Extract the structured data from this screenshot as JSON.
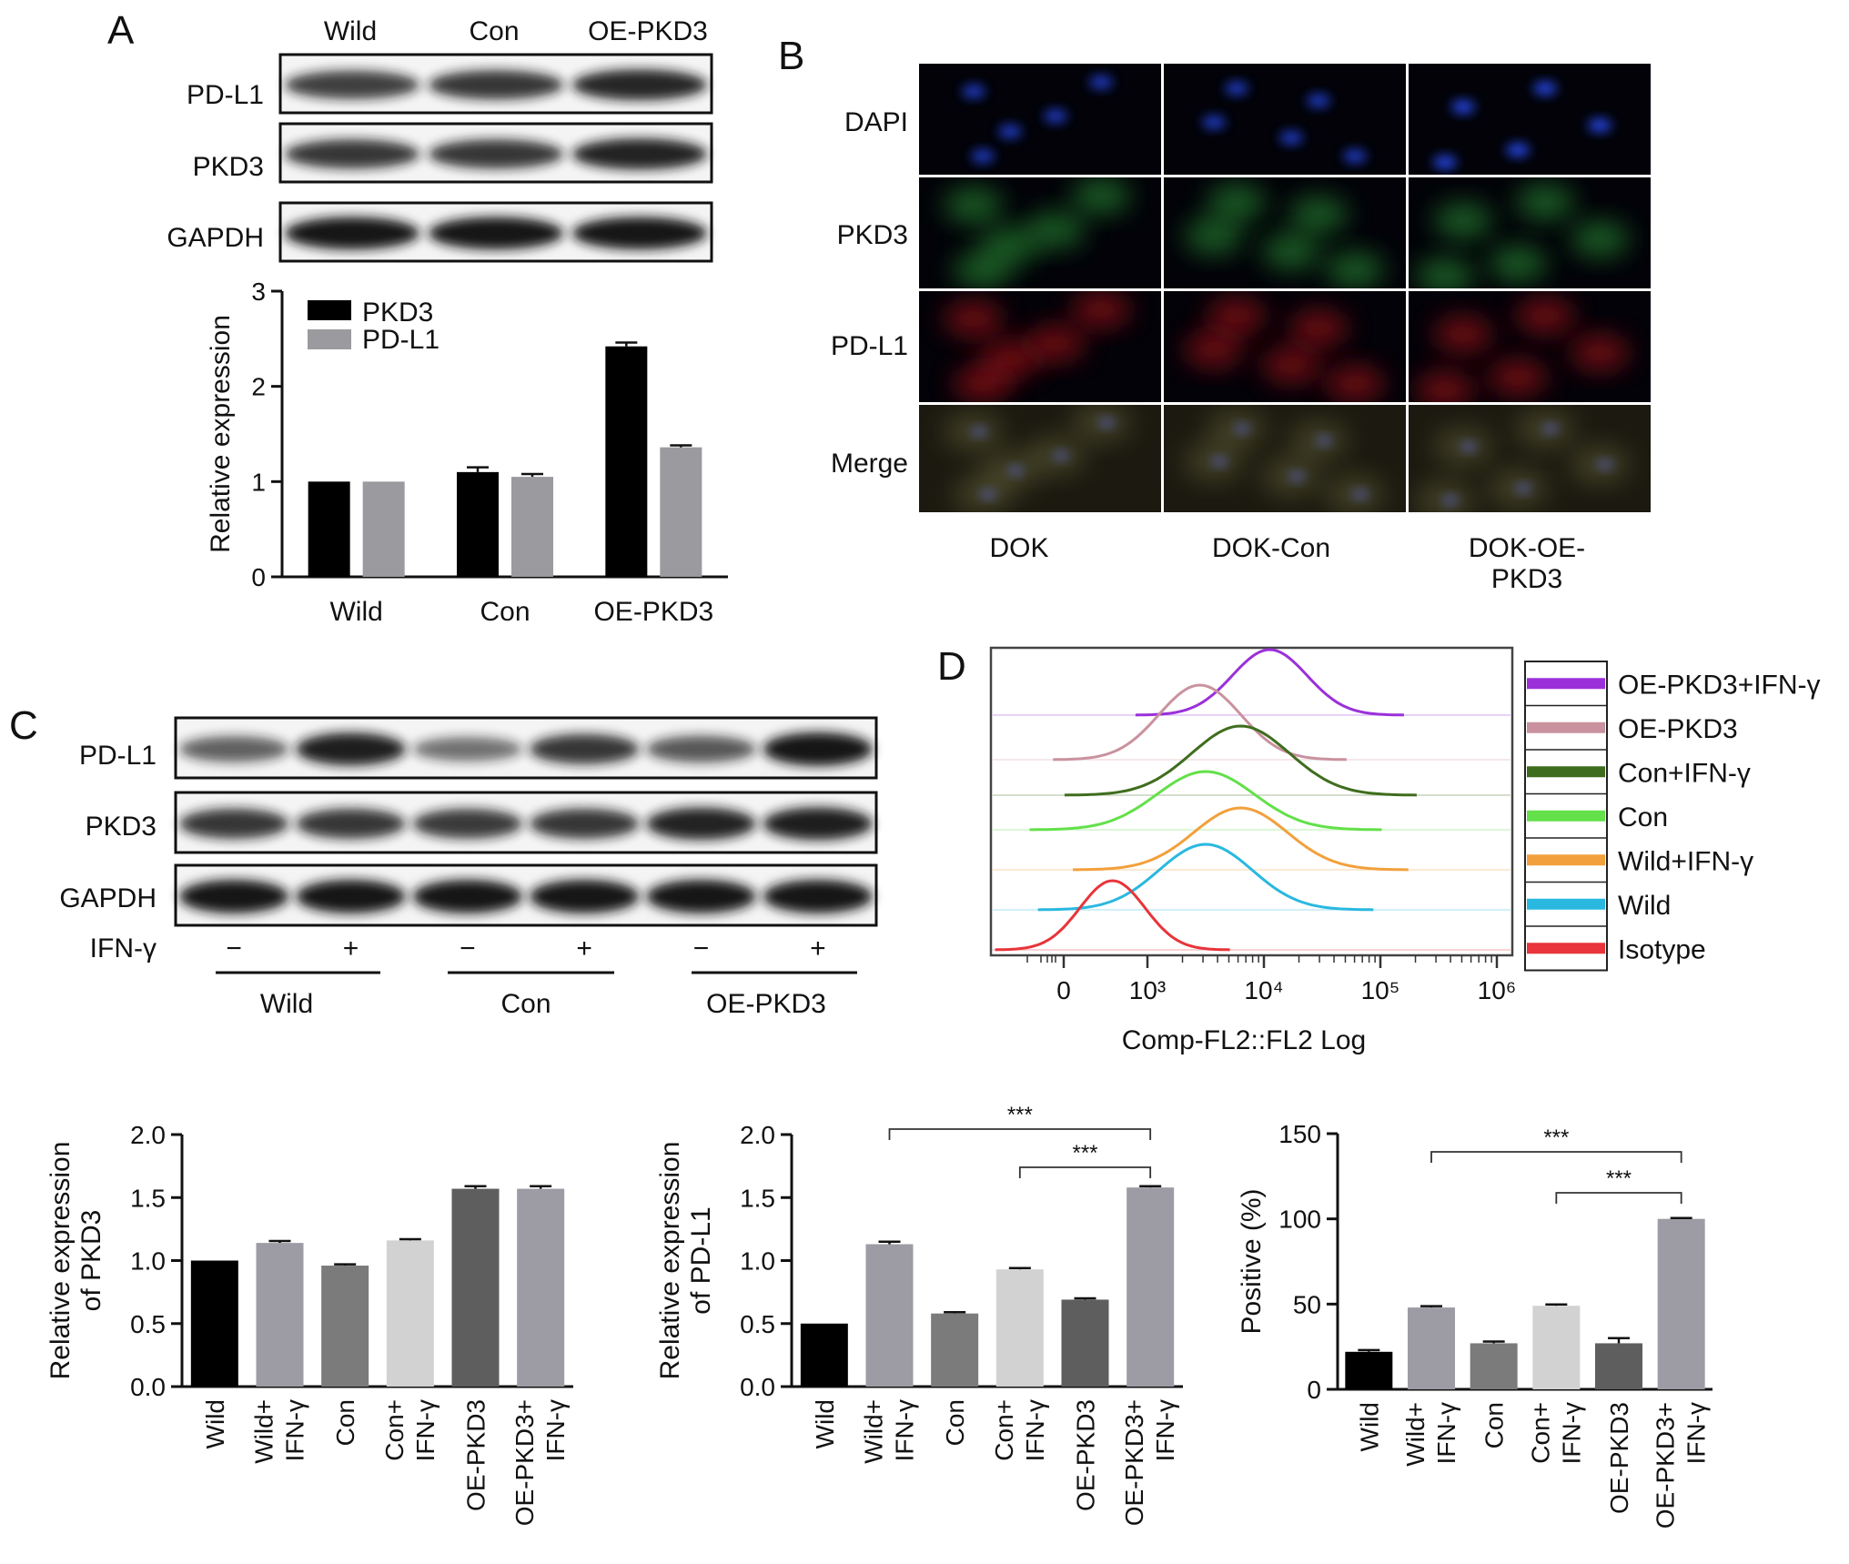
{
  "panels": {
    "A": {
      "letter": "A",
      "blot": {
        "lanes": [
          "Wild",
          "Con",
          "OE-PKD3"
        ],
        "rows": [
          "PD-L1",
          "PKD3",
          "GAPDH"
        ],
        "intensity": [
          [
            0.75,
            0.8,
            0.9
          ],
          [
            0.8,
            0.8,
            0.92
          ],
          [
            1.0,
            1.0,
            1.0
          ]
        ]
      }
    },
    "B": {
      "letter": "B",
      "rows": [
        "DAPI",
        "PKD3",
        "PD-L1",
        "Merge"
      ],
      "columns": [
        "DOK",
        "DOK-Con",
        "DOK-OE-\nPKD3"
      ],
      "row_colors": [
        "#2040d0",
        "#2fa03a",
        "#c0181e",
        "#8a8a50"
      ]
    },
    "C": {
      "letter": "C",
      "blot": {
        "rows": [
          "PD-L1",
          "PKD3",
          "GAPDH"
        ],
        "treatment_label": "IFN-γ",
        "treatment_signs": [
          "−",
          "+",
          "−",
          "+",
          "−",
          "+"
        ],
        "groups": [
          "Wild",
          "Con",
          "OE-PKD3"
        ],
        "intensity": [
          [
            0.55,
            0.95,
            0.45,
            0.8,
            0.6,
            1.0
          ],
          [
            0.8,
            0.8,
            0.78,
            0.8,
            0.92,
            0.95
          ],
          [
            1.0,
            1.0,
            1.0,
            1.0,
            1.0,
            1.0
          ]
        ]
      }
    },
    "D": {
      "letter": "D",
      "legend": [
        {
          "name": "OE-PKD3+IFN-γ",
          "color": "#9b30d9"
        },
        {
          "name": "OE-PKD3",
          "color": "#c9929e"
        },
        {
          "name": "Con+IFN-γ",
          "color": "#3f6d1e"
        },
        {
          "name": "Con",
          "color": "#63e04a"
        },
        {
          "name": "Wild+IFN-γ",
          "color": "#f2a03c"
        },
        {
          "name": "Wild",
          "color": "#2ab8e0"
        },
        {
          "name": "Isotype",
          "color": "#e8343a"
        }
      ]
    }
  },
  "chart_data": [
    {
      "type": "bar",
      "id": "A-bars",
      "categories": [
        "Wild",
        "Con",
        "OE-PKD3"
      ],
      "series": [
        {
          "name": "PKD3",
          "color": "#000000",
          "values": [
            1.0,
            1.1,
            2.42
          ],
          "errors": [
            0.0,
            0.05,
            0.04
          ]
        },
        {
          "name": "PD-L1",
          "color": "#9a9a9f",
          "values": [
            1.0,
            1.05,
            1.36
          ],
          "errors": [
            0.0,
            0.03,
            0.02
          ]
        }
      ],
      "ylabel": "Relative expression",
      "ylim": [
        0,
        3
      ],
      "yticks": [
        0,
        1,
        2,
        3
      ],
      "legend": "top-left"
    },
    {
      "type": "line",
      "id": "D-histogram",
      "xlabel": "Comp-FL2::FL2 Log",
      "xticks": [
        "0",
        "10³",
        "10⁴",
        "10⁵",
        "10⁶"
      ],
      "series": [
        {
          "name": "Isotype",
          "peak_log10": 2.7
        },
        {
          "name": "Wild",
          "peak_log10": 3.5
        },
        {
          "name": "Wild+IFN-γ",
          "peak_log10": 3.8
        },
        {
          "name": "Con",
          "peak_log10": 3.5
        },
        {
          "name": "Con+IFN-γ",
          "peak_log10": 3.8
        },
        {
          "name": "OE-PKD3",
          "peak_log10": 3.45
        },
        {
          "name": "OE-PKD3+IFN-γ",
          "peak_log10": 4.05
        }
      ]
    },
    {
      "type": "bar",
      "id": "C-PKD3",
      "categories": [
        "Wild",
        "Wild+\nIFN-γ",
        "Con",
        "Con+\nIFN-γ",
        "OE-PKD3",
        "OE-PKD3+\nIFN-γ"
      ],
      "values": [
        1.0,
        1.14,
        0.96,
        1.16,
        1.57,
        1.57
      ],
      "errors": [
        0.0,
        0.015,
        0.01,
        0.01,
        0.02,
        0.02
      ],
      "colors": [
        "#000000",
        "#9d9ca4",
        "#7b7b7b",
        "#d2d2d2",
        "#5e5e5e",
        "#9d9ca4"
      ],
      "ylabel": "Relative expression\nof PKD3",
      "ylim": [
        0,
        2
      ],
      "yticks": [
        "0.0",
        "0.5",
        "1.0",
        "1.5",
        "2.0"
      ]
    },
    {
      "type": "bar",
      "id": "C-PDL1",
      "categories": [
        "Wild",
        "Wild+\nIFN-γ",
        "Con",
        "Con+\nIFN-γ",
        "OE-PKD3",
        "OE-PKD3+\nIFN-γ"
      ],
      "values": [
        0.5,
        1.13,
        0.58,
        0.93,
        0.69,
        1.58
      ],
      "errors": [
        0.0,
        0.02,
        0.01,
        0.01,
        0.01,
        0.01
      ],
      "colors": [
        "#000000",
        "#9d9ca4",
        "#7b7b7b",
        "#d2d2d2",
        "#5e5e5e",
        "#9d9ca4"
      ],
      "ylabel": "Relative expression\nof PD-L1",
      "ylim": [
        0,
        2
      ],
      "yticks": [
        "0.0",
        "0.5",
        "1.0",
        "1.5",
        "2.0"
      ],
      "significance": [
        {
          "from": 1,
          "to": 5,
          "label": "***"
        },
        {
          "from": 3,
          "to": 5,
          "label": "***"
        }
      ]
    },
    {
      "type": "bar",
      "id": "D-positive",
      "categories": [
        "Wild",
        "Wild+\nIFN-γ",
        "Con",
        "Con+\nIFN-γ",
        "OE-PKD3",
        "OE-PKD3+\nIFN-γ"
      ],
      "values": [
        22,
        48,
        27,
        49,
        27,
        100
      ],
      "errors": [
        1,
        0.8,
        1,
        0.8,
        3,
        0.5
      ],
      "colors": [
        "#000000",
        "#9d9ca4",
        "#7b7b7b",
        "#d2d2d2",
        "#5e5e5e",
        "#9d9ca4"
      ],
      "ylabel": "Positive (%)",
      "ylim": [
        0,
        150
      ],
      "yticks": [
        "0",
        "50",
        "100",
        "150"
      ],
      "significance": [
        {
          "from": 1,
          "to": 5,
          "label": "***"
        },
        {
          "from": 3,
          "to": 5,
          "label": "***"
        }
      ]
    }
  ]
}
